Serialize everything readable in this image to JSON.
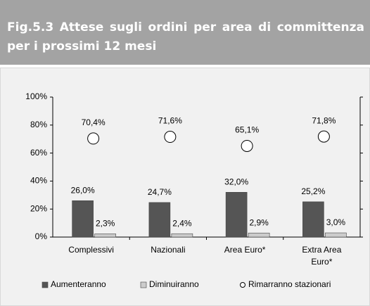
{
  "header": {
    "title": "Fig.5.3 Attese sugli ordini per area di committenza per i prossimi 12 mesi"
  },
  "chart_data": {
    "type": "bar",
    "categories": [
      "Complessivi",
      "Nazionali",
      "Area Euro*",
      "Extra Area Euro*"
    ],
    "series": [
      {
        "name": "Aumenteranno",
        "type": "bar",
        "color": "#555555",
        "values": [
          26.0,
          24.7,
          32.0,
          25.2
        ],
        "value_labels": [
          "26,0%",
          "24,7%",
          "32,0%",
          "25,2%"
        ]
      },
      {
        "name": "Diminuiranno",
        "type": "bar",
        "color": "#cccccc",
        "values": [
          2.3,
          2.4,
          2.9,
          3.0
        ],
        "value_labels": [
          "2,3%",
          "2,4%",
          "2,9%",
          "3,0%"
        ]
      },
      {
        "name": "Rimarranno stazionari",
        "type": "scatter",
        "color": "#ffffff",
        "values": [
          70.4,
          71.6,
          65.1,
          71.8
        ],
        "value_labels": [
          "70,4%",
          "71,6%",
          "65,1%",
          "71,8%"
        ]
      }
    ],
    "ylim": [
      0,
      100
    ],
    "yticks": [
      {
        "value": 0,
        "label": "0%"
      },
      {
        "value": 20,
        "label": "20%"
      },
      {
        "value": 40,
        "label": "40%"
      },
      {
        "value": 60,
        "label": "60%"
      },
      {
        "value": 80,
        "label": "80%"
      },
      {
        "value": 100,
        "label": "100%"
      }
    ],
    "legend": "bottom"
  }
}
